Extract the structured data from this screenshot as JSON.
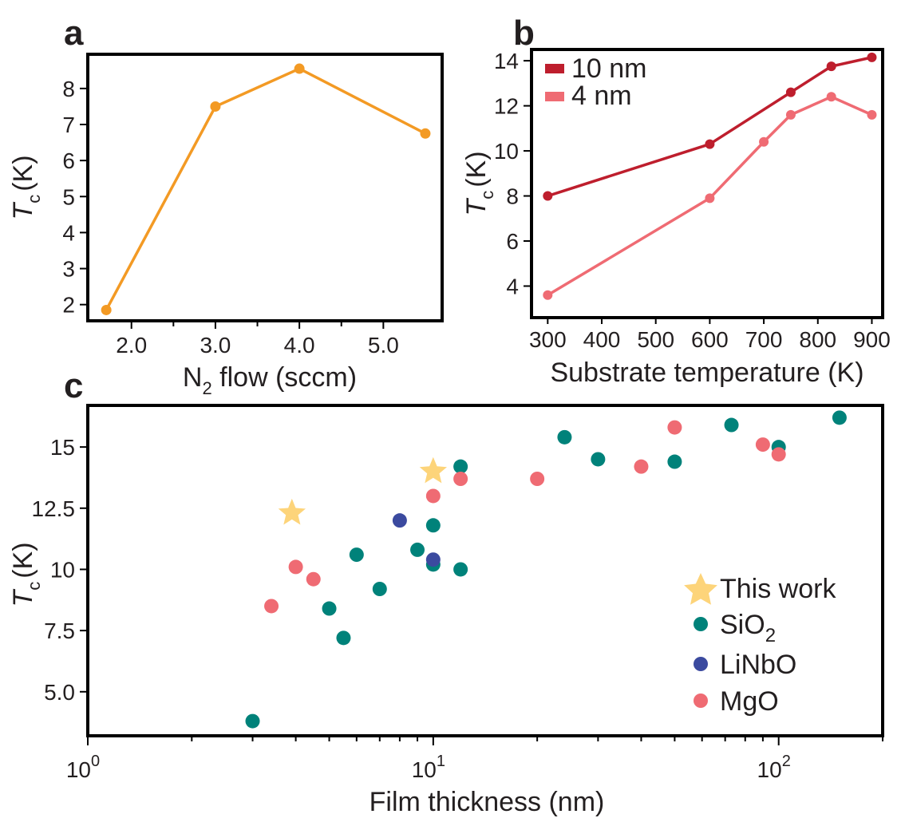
{
  "chart_data": [
    {
      "panel": "a",
      "type": "line",
      "xlabel_main": "N",
      "xlabel_sub": "2",
      "xlabel_rest": " flow (sccm)",
      "ylabel_main": "T",
      "ylabel_sub": "c",
      "ylabel_rest": "(K)",
      "xlim": [
        1.48,
        5.7
      ],
      "ylim": [
        1.55,
        8.95
      ],
      "x_ticks": [
        2.0,
        3.0,
        4.0,
        5.0
      ],
      "x_tick_labels": [
        "2.0",
        "3.0",
        "4.0",
        "5.0"
      ],
      "x_minor_ticks": [
        2.5,
        3.5,
        4.5
      ],
      "y_ticks": [
        2,
        3,
        4,
        5,
        6,
        7,
        8
      ],
      "y_tick_labels": [
        "2",
        "3",
        "4",
        "5",
        "6",
        "7",
        "8"
      ],
      "color": "#f39a24",
      "series": [
        {
          "name": "Tc",
          "x": [
            1.7,
            3.0,
            4.0,
            5.5
          ],
          "values": [
            1.85,
            7.5,
            8.55,
            6.75
          ]
        }
      ]
    },
    {
      "panel": "b",
      "type": "line",
      "xlabel": "Substrate temperature (K)",
      "ylabel_main": "T",
      "ylabel_sub": "c",
      "ylabel_rest": "(K)",
      "xlim": [
        270,
        920
      ],
      "ylim": [
        2.6,
        14.5
      ],
      "x_ticks": [
        300,
        400,
        500,
        600,
        700,
        800,
        900
      ],
      "x_tick_labels": [
        "300",
        "400",
        "500",
        "600",
        "700",
        "800",
        "900"
      ],
      "y_ticks": [
        4,
        6,
        8,
        10,
        12,
        14
      ],
      "y_tick_labels": [
        "4",
        "6",
        "8",
        "10",
        "12",
        "14"
      ],
      "legend_position": "top-left",
      "series": [
        {
          "name": "10 nm",
          "color": "#be1e2d",
          "x": [
            300,
            600,
            750,
            825,
            900
          ],
          "values": [
            8.0,
            10.3,
            12.6,
            13.75,
            14.15
          ]
        },
        {
          "name": "4 nm",
          "color": "#ef6b73",
          "x": [
            300,
            600,
            700,
            750,
            825,
            900
          ],
          "values": [
            3.6,
            7.9,
            10.4,
            11.6,
            12.4,
            11.6
          ]
        }
      ]
    },
    {
      "panel": "c",
      "type": "scatter",
      "xscale": "log",
      "xlabel": "Film thickness (nm)",
      "ylabel_main": "T",
      "ylabel_sub": "c",
      "ylabel_rest": "(K)",
      "xlim": [
        1,
        200
      ],
      "ylim": [
        3.2,
        16.7
      ],
      "x_ticks": [
        1,
        10,
        100
      ],
      "x_tick_base": "10",
      "x_tick_exps": [
        "0",
        "1",
        "2"
      ],
      "y_ticks": [
        5.0,
        7.5,
        10,
        12.5,
        15
      ],
      "y_tick_labels": [
        "5.0",
        "7.5",
        "10",
        "12.5",
        "15"
      ],
      "legend_position": "bottom-right",
      "series": [
        {
          "name": "This work",
          "marker": "star",
          "color": "#fdd47a",
          "x": [
            3.9,
            10
          ],
          "values": [
            12.3,
            14.0
          ]
        },
        {
          "name": "SiO",
          "name_sub": "2",
          "marker": "circle",
          "color": "#00827a",
          "x": [
            3,
            5,
            5.5,
            6,
            7,
            9,
            10,
            10,
            12,
            12,
            24,
            30,
            50,
            73,
            100,
            150
          ],
          "values": [
            3.8,
            8.4,
            7.2,
            10.6,
            9.2,
            10.8,
            10.2,
            11.8,
            10.0,
            14.2,
            15.4,
            14.5,
            14.4,
            15.9,
            15.0,
            16.2
          ]
        },
        {
          "name": "LiNbO",
          "marker": "circle",
          "color": "#3b4a9f",
          "x": [
            8,
            10
          ],
          "values": [
            12.0,
            10.4
          ]
        },
        {
          "name": "MgO",
          "marker": "circle",
          "color": "#ef6b73",
          "x": [
            3.4,
            4.0,
            4.5,
            10,
            12,
            20,
            40,
            50,
            90,
            100
          ],
          "values": [
            8.5,
            10.1,
            9.6,
            13.0,
            13.7,
            13.7,
            14.2,
            15.8,
            15.1,
            14.7
          ]
        }
      ]
    }
  ]
}
